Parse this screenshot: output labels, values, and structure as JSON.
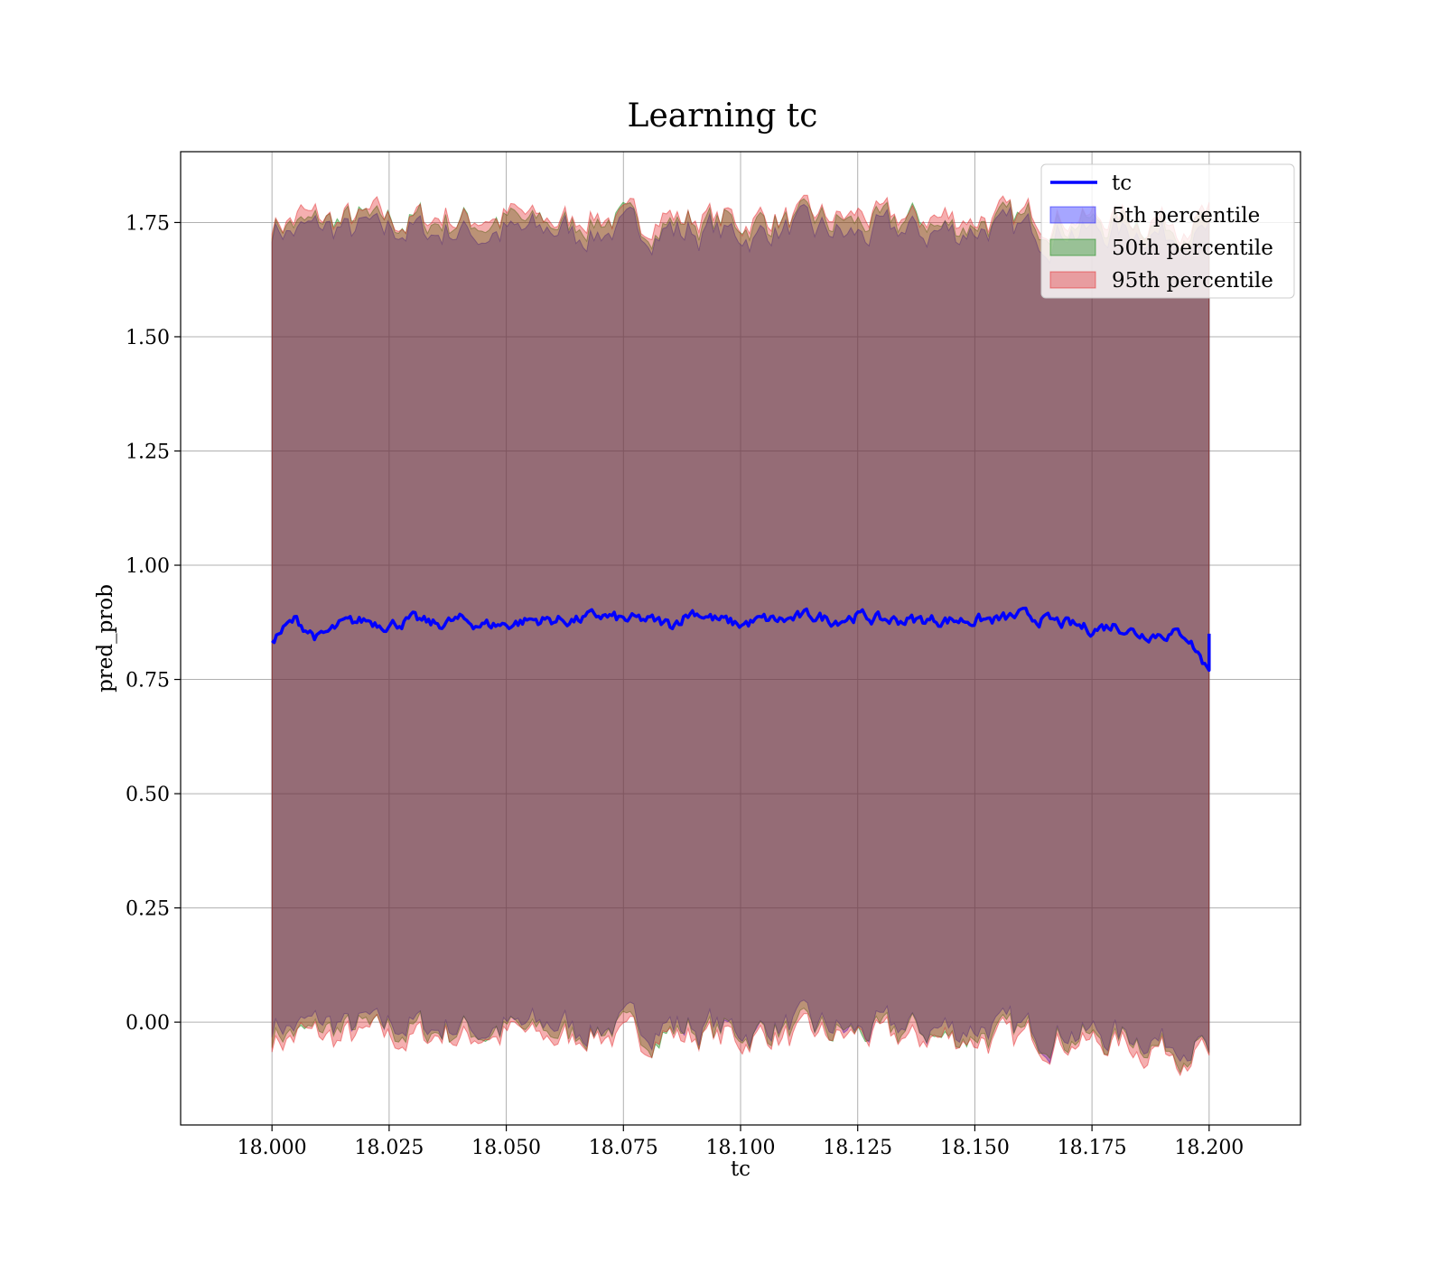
{
  "chart_data": {
    "type": "line",
    "title": "Learning tc",
    "xlabel": "tc",
    "ylabel": "pred_prob",
    "xlim": [
      17.9805,
      18.2195
    ],
    "ylim": [
      -0.225,
      1.905
    ],
    "xticks": [
      "18.000",
      "18.025",
      "18.050",
      "18.075",
      "18.100",
      "18.125",
      "18.150",
      "18.175",
      "18.200"
    ],
    "yticks": [
      "0.00",
      "0.25",
      "0.50",
      "0.75",
      "1.00",
      "1.25",
      "1.50",
      "1.75"
    ],
    "grid": true,
    "legend_position": "top-right",
    "x_range": [
      18.0,
      18.2
    ],
    "series": [
      {
        "name": "tc",
        "kind": "line",
        "color": "#0000ff",
        "x": [
          18.0,
          18.005,
          18.01,
          18.015,
          18.02,
          18.025,
          18.03,
          18.035,
          18.04,
          18.045,
          18.05,
          18.055,
          18.06,
          18.065,
          18.07,
          18.075,
          18.08,
          18.085,
          18.09,
          18.095,
          18.1,
          18.105,
          18.11,
          18.115,
          18.12,
          18.125,
          18.13,
          18.135,
          18.14,
          18.145,
          18.15,
          18.155,
          18.16,
          18.165,
          18.17,
          18.175,
          18.18,
          18.185,
          18.19,
          18.195,
          18.2
        ],
        "values": [
          0.84,
          0.88,
          0.84,
          0.87,
          0.88,
          0.87,
          0.88,
          0.87,
          0.88,
          0.87,
          0.87,
          0.88,
          0.88,
          0.88,
          0.89,
          0.88,
          0.88,
          0.87,
          0.9,
          0.88,
          0.87,
          0.88,
          0.88,
          0.89,
          0.88,
          0.89,
          0.88,
          0.88,
          0.88,
          0.88,
          0.88,
          0.88,
          0.89,
          0.88,
          0.87,
          0.86,
          0.87,
          0.85,
          0.85,
          0.85,
          0.77
        ]
      },
      {
        "name": "5th percentile",
        "kind": "band",
        "color": "#0000ff",
        "lower": -0.01,
        "upper": 1.73
      },
      {
        "name": "50th percentile",
        "kind": "band",
        "color": "#008000",
        "lower": -0.02,
        "upper": 1.75
      },
      {
        "name": "95th percentile",
        "kind": "band",
        "color": "#e31a1c",
        "lower": -0.03,
        "upper": 1.76
      }
    ]
  }
}
